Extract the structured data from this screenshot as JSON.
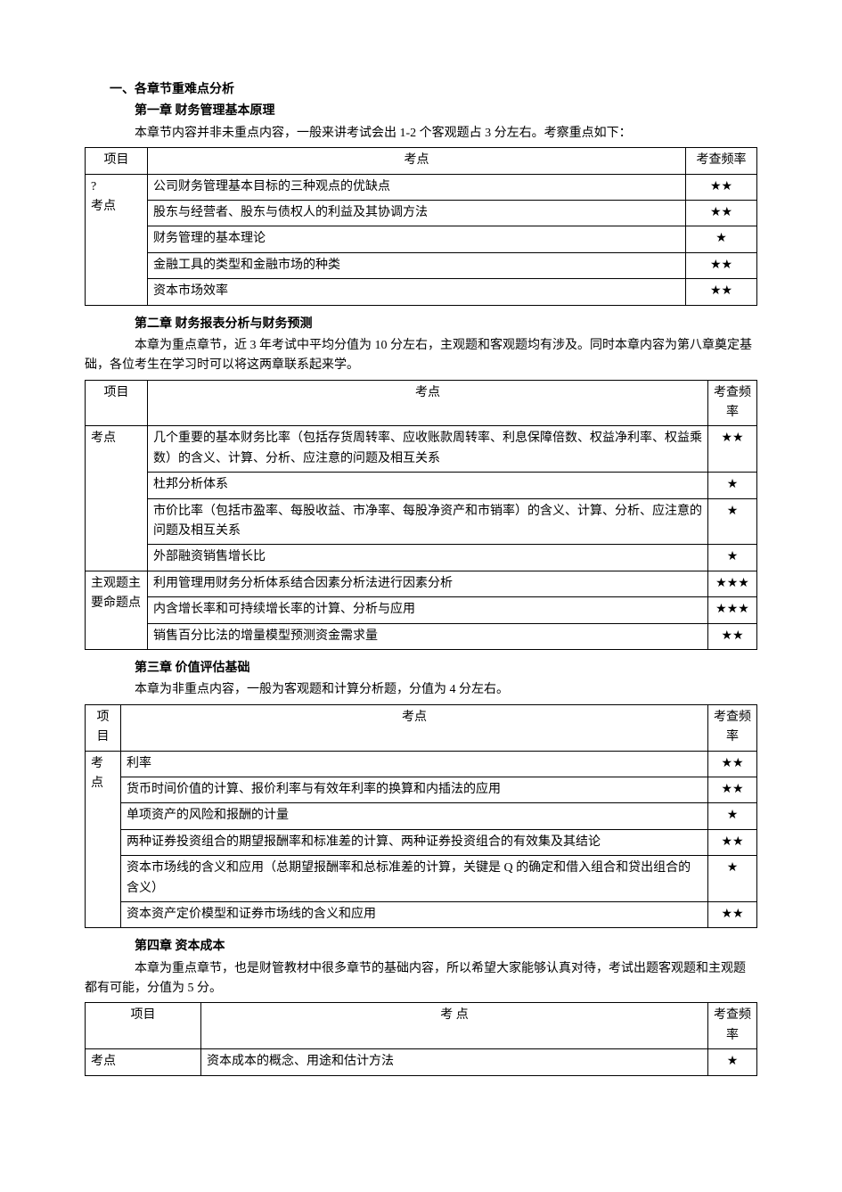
{
  "star1": "★",
  "star2": "★★",
  "star3": "★★★",
  "main_heading": "一、各章节重难点分析",
  "ch1": {
    "title": "第一章 财务管理基本原理",
    "intro": "本章节内容并非未重点内容，一般来讲考试会出 1-2 个客观题占 3 分左右。考察重点如下：",
    "col_proj": "项目",
    "col_point": "考点",
    "col_freq": "考查频率",
    "row_label": "?\n考点",
    "rows": [
      {
        "point": "公司财务管理基本目标的三种观点的优缺点",
        "freq": "★★"
      },
      {
        "point": "股东与经营者、股东与债权人的利益及其协调方法",
        "freq": "★★"
      },
      {
        "point": "财务管理的基本理论",
        "freq": "★"
      },
      {
        "point": "金融工具的类型和金融市场的种类",
        "freq": "★★"
      },
      {
        "point": "资本市场效率",
        "freq": "★★"
      }
    ]
  },
  "ch2": {
    "title": "第二章 财务报表分析与财务预测",
    "intro": "本章为重点章节，近 3 年考试中平均分值为 10 分左右，主观题和客观题均有涉及。同时本章内容为第八章奠定基础，各位考生在学习时可以将这两章联系起来学。",
    "col_proj": "项目",
    "col_point": "考点",
    "col_freq": "考查频率",
    "label_a": "考点",
    "label_b": "主观题主要命题点",
    "rows_a": [
      {
        "point": "几个重要的基本财务比率（包括存货周转率、应收账款周转率、利息保障倍数、权益净利率、权益乘数）的含义、计算、分析、应注意的问题及相互关系",
        "freq": "★★"
      },
      {
        "point": "杜邦分析体系",
        "freq": "★"
      },
      {
        "point": "市价比率（包括市盈率、每股收益、市净率、每股净资产和市销率）的含义、计算、分析、应注意的问题及相互关系",
        "freq": "★"
      },
      {
        "point": "外部融资销售增长比",
        "freq": "★"
      }
    ],
    "rows_b": [
      {
        "point": "利用管理用财务分析体系结合因素分析法进行因素分析",
        "freq": "★★★"
      },
      {
        "point": "内含增长率和可持续增长率的计算、分析与应用",
        "freq": "★★★"
      },
      {
        "point": "销售百分比法的增量模型预测资金需求量",
        "freq": "★★"
      }
    ]
  },
  "ch3": {
    "title": "第三章 价值评估基础",
    "intro": "本章为非重点内容，一般为客观题和计算分析题，分值为 4 分左右。",
    "col_proj": "项目",
    "col_point": "考点",
    "col_freq": "考查频率",
    "label": "考点",
    "rows": [
      {
        "point": "利率",
        "freq": "★★"
      },
      {
        "point": "货币时间价值的计算、报价利率与有效年利率的换算和内插法的应用",
        "freq": "★★"
      },
      {
        "point": "单项资产的风险和报酬的计量",
        "freq": "★"
      },
      {
        "point": "两种证券投资组合的期望报酬率和标准差的计算、两种证券投资组合的有效集及其结论",
        "freq": "★★"
      },
      {
        "point": "资本市场线的含义和应用（总期望报酬率和总标准差的计算，关键是 Q 的确定和借入组合和贷出组合的含义）",
        "freq": "★"
      },
      {
        "point": "资本资产定价模型和证券市场线的含义和应用",
        "freq": "★★"
      }
    ]
  },
  "ch4": {
    "title": "第四章 资本成本",
    "intro": "本章为重点章节，也是财管教材中很多章节的基础内容，所以希望大家能够认真对待，考试出题客观题和主观题都有可能，分值为 5 分。",
    "col_proj": "项目",
    "col_point": "考 点",
    "col_freq": "考查频率",
    "label": "考点",
    "rows": [
      {
        "point": "资本成本的概念、用途和估计方法",
        "freq": "★"
      }
    ]
  }
}
